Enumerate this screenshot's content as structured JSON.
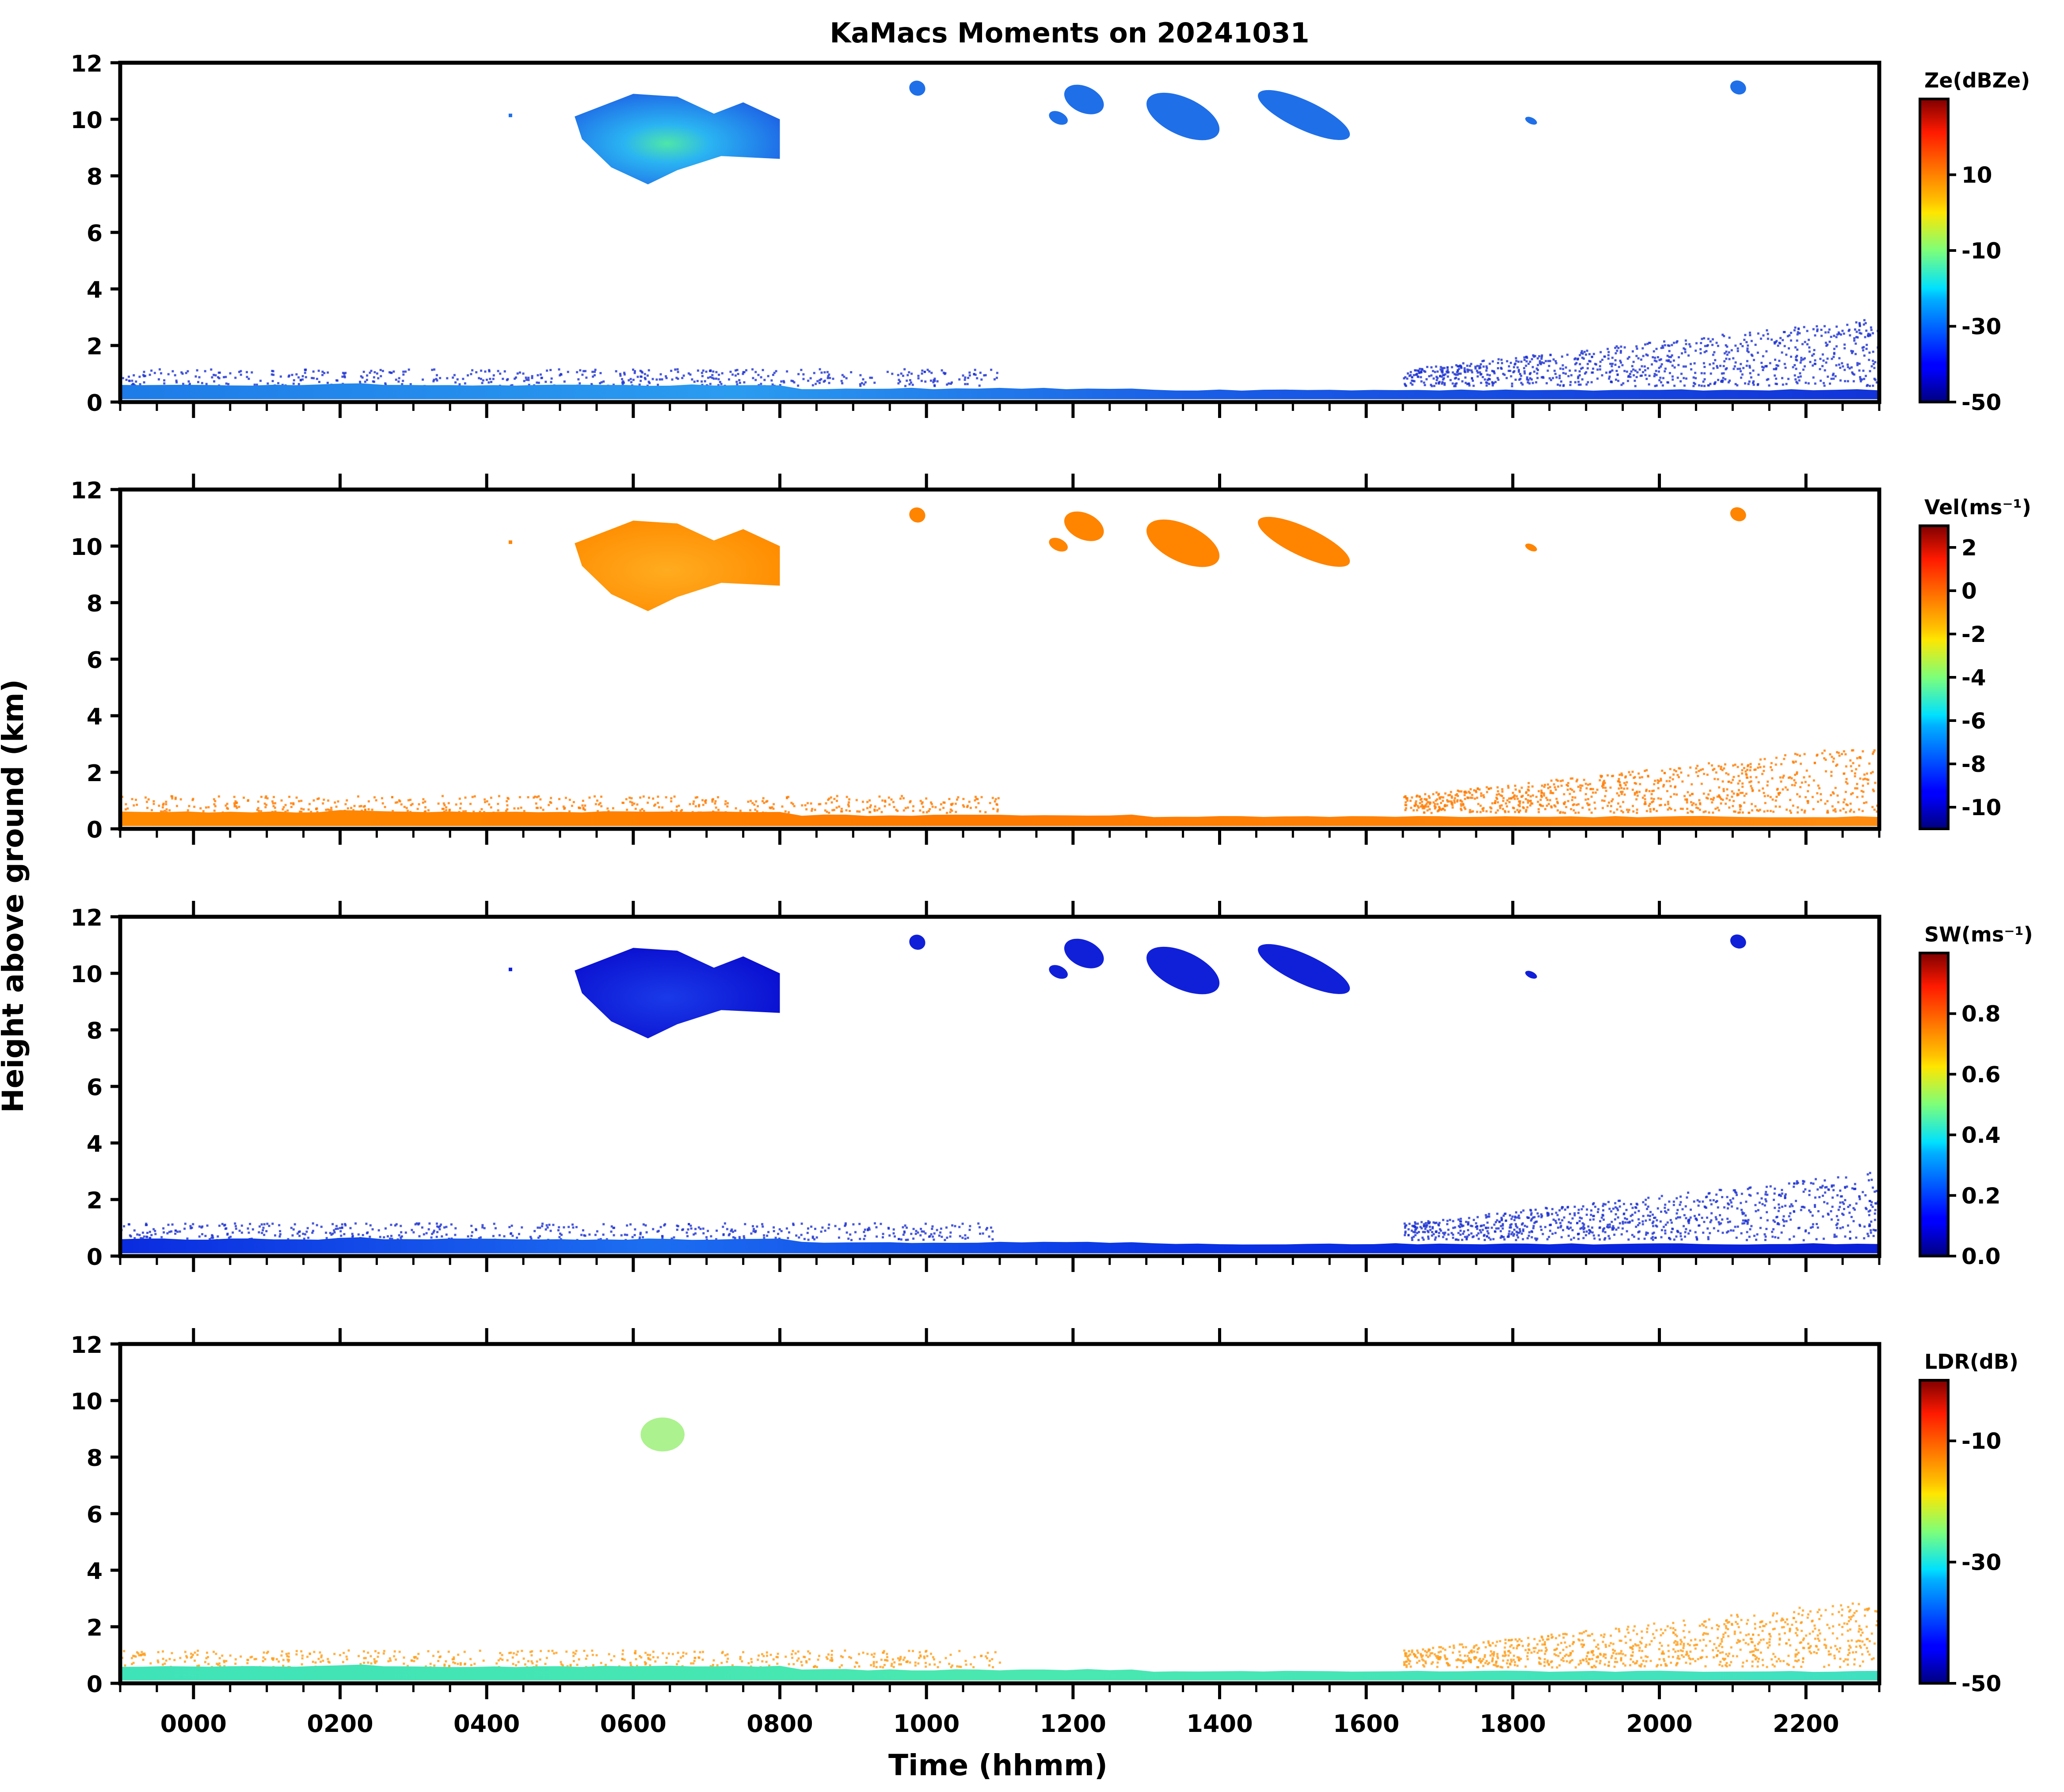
{
  "figure": {
    "title": "KaMacs Moments on 20241031",
    "ylabel": "Height above ground (km)",
    "xlabel": "Time (hhmm)"
  },
  "chart_data": {
    "type": "heatmap",
    "x_ticks": {
      "labels": [
        "0000",
        "0200",
        "0400",
        "0600",
        "0800",
        "1000",
        "1200",
        "1400",
        "1600",
        "1800",
        "2000",
        "2200"
      ],
      "values_hours": [
        0,
        2,
        4,
        6,
        8,
        10,
        12,
        14,
        16,
        18,
        20,
        22
      ]
    },
    "xlim_hours": [
      -1,
      23
    ],
    "ylim_km": [
      0,
      12
    ],
    "y_ticks": [
      0,
      2,
      4,
      6,
      8,
      10,
      12
    ],
    "panels": [
      {
        "id": "ze",
        "colorbar_label": "Ze(dBZe)",
        "colorbar_ticks": [
          "10",
          "-10",
          "-30",
          "-50"
        ],
        "colorbar_tick_values": [
          10,
          -10,
          -30,
          -50
        ],
        "colorbar_range": [
          -50,
          30
        ],
        "features": [
          {
            "name": "main-cloud",
            "t_start": 5.6,
            "t_end": 8.0,
            "z_bottom": 7.7,
            "z_top": 10.9,
            "value": -25
          },
          {
            "name": "boundary-layer",
            "t_start": -1.0,
            "t_end": 23.0,
            "z_bottom": 0.1,
            "z_top": 0.6,
            "value": -35
          }
        ]
      },
      {
        "id": "vel",
        "colorbar_label": "Vel(ms⁻¹)",
        "colorbar_ticks": [
          "2",
          "0",
          "-2",
          "-4",
          "-6",
          "-8",
          "-10"
        ],
        "colorbar_tick_values": [
          2,
          0,
          -2,
          -4,
          -6,
          -8,
          -10
        ],
        "colorbar_range": [
          -11,
          3
        ],
        "features": [
          {
            "name": "main-cloud",
            "t_start": 5.6,
            "t_end": 8.0,
            "z_bottom": 7.7,
            "z_top": 10.9,
            "value": -0.5
          },
          {
            "name": "boundary-layer",
            "t_start": -1.0,
            "t_end": 23.0,
            "z_bottom": 0.1,
            "z_top": 0.6,
            "value": 0
          }
        ]
      },
      {
        "id": "sw",
        "colorbar_label": "SW(ms⁻¹)",
        "colorbar_ticks": [
          "0.8",
          "0.6",
          "0.4",
          "0.2",
          "0.0"
        ],
        "colorbar_tick_values": [
          0.8,
          0.6,
          0.4,
          0.2,
          0.0
        ],
        "colorbar_range": [
          0,
          1
        ],
        "features": [
          {
            "name": "main-cloud",
            "t_start": 5.6,
            "t_end": 8.0,
            "z_bottom": 7.7,
            "z_top": 10.9,
            "value": 0.05
          },
          {
            "name": "boundary-layer",
            "t_start": -1.0,
            "t_end": 23.0,
            "z_bottom": 0.1,
            "z_top": 0.6,
            "value": 0.2
          }
        ]
      },
      {
        "id": "ldr",
        "colorbar_label": "LDR(dB)",
        "colorbar_ticks": [
          "-10",
          "-30",
          "-50"
        ],
        "colorbar_tick_values": [
          -10,
          -30,
          -50
        ],
        "colorbar_range": [
          -50,
          0
        ],
        "features": [
          {
            "name": "small-patch",
            "t_start": 6.1,
            "t_end": 6.7,
            "z_bottom": 8.2,
            "z_top": 9.4,
            "value": -25
          },
          {
            "name": "boundary-layer",
            "t_start": -1.0,
            "t_end": 23.0,
            "z_bottom": 0.1,
            "z_top": 0.6,
            "value": -33
          }
        ]
      }
    ],
    "colormap": "jet"
  }
}
